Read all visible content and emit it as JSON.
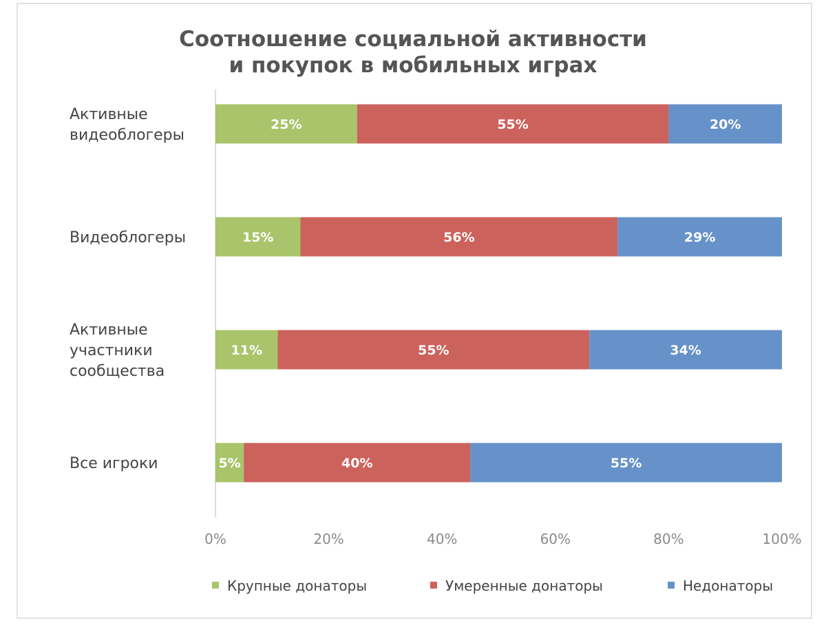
{
  "chart_data": {
    "type": "bar",
    "orientation": "horizontal",
    "stacked": "percent",
    "title": [
      "Соотношение социальной активности",
      "и покупок в мобильных играх"
    ],
    "categories": [
      [
        "Активные",
        "видеоблогеры"
      ],
      [
        "Видеоблогеры"
      ],
      [
        "Активные",
        "участники",
        "сообщества"
      ],
      [
        "Все игроки"
      ]
    ],
    "series": [
      {
        "name": "Крупные донаторы",
        "color": "#a9c46a",
        "values": [
          25,
          15,
          11,
          5
        ]
      },
      {
        "name": "Умеренные донаторы",
        "color": "#cc625c",
        "values": [
          55,
          56,
          55,
          40
        ]
      },
      {
        "name": "Недонаторы",
        "color": "#6692c9",
        "values": [
          20,
          29,
          34,
          55
        ]
      }
    ],
    "xticks": [
      "0%",
      "20%",
      "40%",
      "60%",
      "80%",
      "100%"
    ],
    "xlim": [
      0,
      100
    ],
    "xlabel": "",
    "ylabel": "",
    "grid": false,
    "legend": "bottom"
  }
}
